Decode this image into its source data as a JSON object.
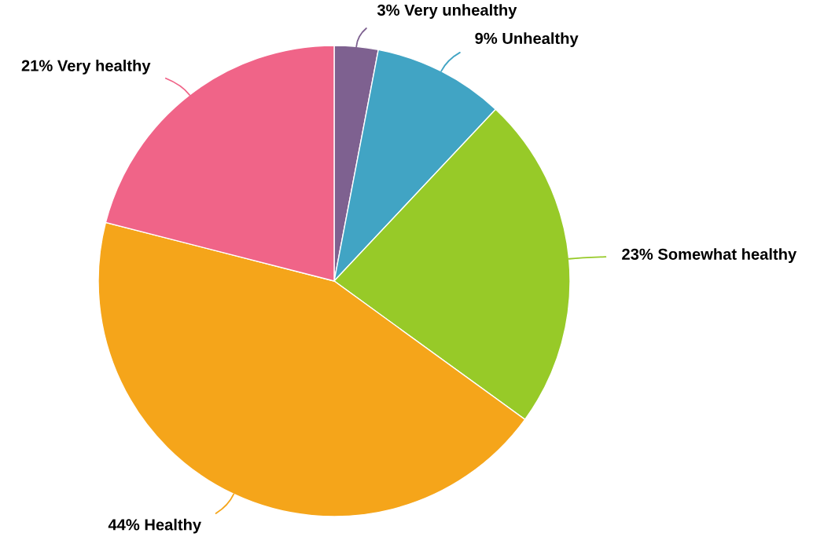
{
  "chart_data": {
    "type": "pie",
    "categories": [
      "Very unhealthy",
      "Unhealthy",
      "Somewhat healthy",
      "Healthy",
      "Very healthy"
    ],
    "values": [
      3,
      9,
      23,
      44,
      21
    ],
    "value_labels": [
      "3%",
      "9%",
      "23%",
      "44%",
      "21%"
    ],
    "colors": [
      "#7e6190",
      "#41a4c4",
      "#97ca28",
      "#f5a51a",
      "#f06488"
    ]
  }
}
